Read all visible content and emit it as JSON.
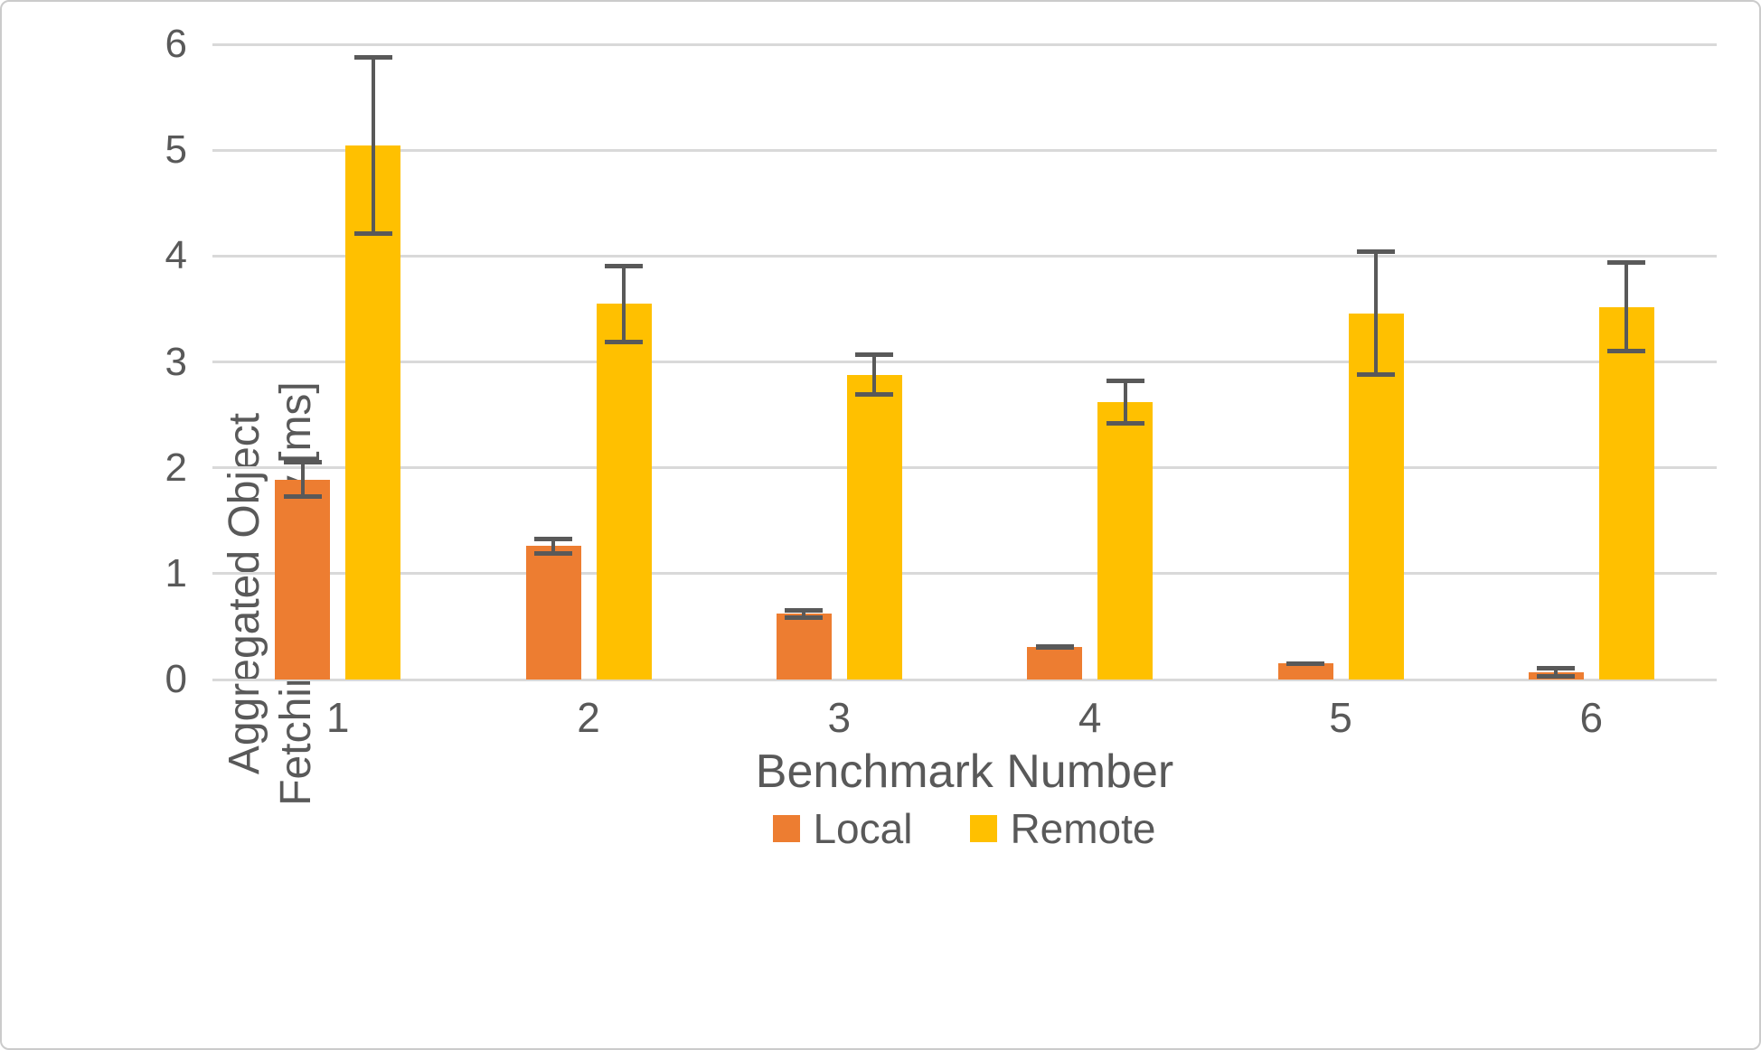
{
  "chart_data": {
    "type": "bar",
    "title": "",
    "xlabel": "Benchmark Number",
    "ylabel": "Aggregated Object Fetching Latency [ms]",
    "categories": [
      "1",
      "2",
      "3",
      "4",
      "5",
      "6"
    ],
    "series": [
      {
        "name": "Local",
        "color": "#ED7D31",
        "values": [
          1.89,
          1.26,
          0.62,
          0.31,
          0.15,
          0.07
        ],
        "error_low": [
          1.71,
          1.17,
          0.56,
          0.28,
          0.13,
          0.01
        ],
        "error_high": [
          2.07,
          1.35,
          0.67,
          0.33,
          0.17,
          0.13
        ]
      },
      {
        "name": "Remote",
        "color": "#FFC000",
        "values": [
          5.04,
          3.55,
          2.88,
          2.62,
          3.46,
          3.52
        ],
        "error_low": [
          4.19,
          3.17,
          2.67,
          2.4,
          2.86,
          3.08
        ],
        "error_high": [
          5.9,
          3.93,
          3.09,
          2.84,
          4.06,
          3.96
        ]
      }
    ],
    "ylim": [
      0,
      6
    ],
    "yticks": [
      0,
      1,
      2,
      3,
      4,
      5,
      6
    ],
    "grid": true,
    "legend_position": "bottom",
    "colors": {
      "gridline": "#d9d9d9",
      "axis_text": "#595959",
      "error_bar": "#595959",
      "background": "#ffffff"
    }
  }
}
